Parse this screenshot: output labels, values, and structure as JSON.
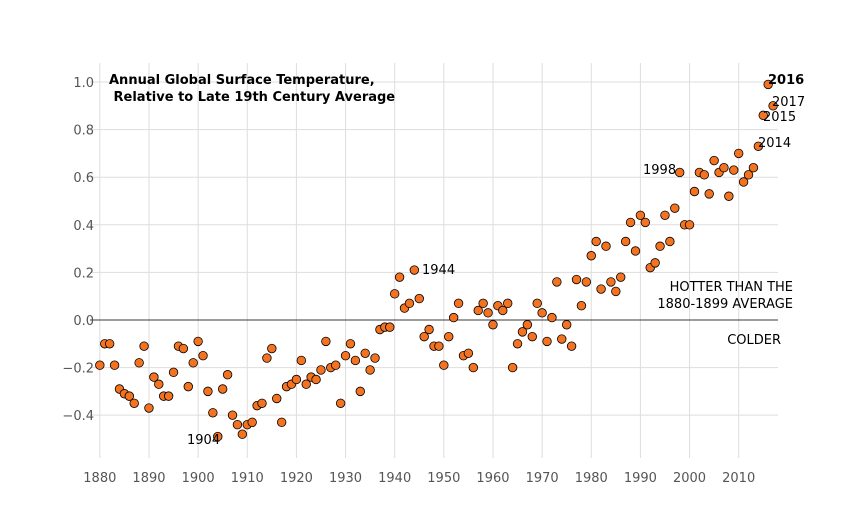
{
  "chart_data": {
    "type": "scatter",
    "title_lines": [
      "Annual Global Surface Temperature,",
      " Relative to Late 19th Century Average"
    ],
    "xlabel": "",
    "ylabel": "",
    "xlim": [
      1878,
      2018
    ],
    "ylim": [
      -0.58,
      1.08
    ],
    "grid": true,
    "x_ticks": [
      1880,
      1890,
      1900,
      1910,
      1920,
      1930,
      1940,
      1950,
      1960,
      1970,
      1980,
      1990,
      2000,
      2010
    ],
    "y_ticks": [
      -0.4,
      -0.2,
      0.0,
      0.2,
      0.4,
      0.6,
      0.8,
      1.0
    ],
    "y_tick_labels": [
      "−0.4",
      "−0.2",
      "0.0",
      "0.2",
      "0.4",
      "0.6",
      "0.8",
      "1.0"
    ],
    "point_color": "#f47320",
    "annotations": {
      "hotter": [
        "HOTTER THAN THE",
        "1880-1899 AVERAGE"
      ],
      "colder": "COLDER",
      "y1904": "1904",
      "y1944": "1944",
      "y1998": "1998",
      "y2014": "2014",
      "y2015": "2015",
      "y2016": "2016",
      "y2017": "2017"
    },
    "points": {
      "x": [
        1880,
        1881,
        1882,
        1883,
        1884,
        1885,
        1886,
        1887,
        1888,
        1889,
        1890,
        1891,
        1892,
        1893,
        1894,
        1895,
        1896,
        1897,
        1898,
        1899,
        1900,
        1901,
        1902,
        1903,
        1904,
        1905,
        1906,
        1907,
        1908,
        1909,
        1910,
        1911,
        1912,
        1913,
        1914,
        1915,
        1916,
        1917,
        1918,
        1919,
        1920,
        1921,
        1922,
        1923,
        1924,
        1925,
        1926,
        1927,
        1928,
        1929,
        1930,
        1931,
        1932,
        1933,
        1934,
        1935,
        1936,
        1937,
        1938,
        1939,
        1940,
        1941,
        1942,
        1943,
        1944,
        1945,
        1946,
        1947,
        1948,
        1949,
        1950,
        1951,
        1952,
        1953,
        1954,
        1955,
        1956,
        1957,
        1958,
        1959,
        1960,
        1961,
        1962,
        1963,
        1964,
        1965,
        1966,
        1967,
        1968,
        1969,
        1970,
        1971,
        1972,
        1973,
        1974,
        1975,
        1976,
        1977,
        1978,
        1979,
        1980,
        1981,
        1982,
        1983,
        1984,
        1985,
        1986,
        1987,
        1988,
        1989,
        1990,
        1991,
        1992,
        1993,
        1994,
        1995,
        1996,
        1997,
        1998,
        1999,
        2000,
        2001,
        2002,
        2003,
        2004,
        2005,
        2006,
        2007,
        2008,
        2009,
        2010,
        2011,
        2012,
        2013,
        2014,
        2015,
        2016,
        2017
      ],
      "y": [
        -0.19,
        -0.1,
        -0.1,
        -0.19,
        -0.29,
        -0.31,
        -0.32,
        -0.35,
        -0.18,
        -0.11,
        -0.37,
        -0.24,
        -0.27,
        -0.32,
        -0.32,
        -0.22,
        -0.11,
        -0.12,
        -0.28,
        -0.18,
        -0.09,
        -0.15,
        -0.3,
        -0.39,
        -0.49,
        -0.29,
        -0.23,
        -0.4,
        -0.44,
        -0.48,
        -0.44,
        -0.43,
        -0.36,
        -0.35,
        -0.16,
        -0.12,
        -0.33,
        -0.43,
        -0.28,
        -0.27,
        -0.25,
        -0.17,
        -0.27,
        -0.24,
        -0.25,
        -0.21,
        -0.09,
        -0.2,
        -0.19,
        -0.35,
        -0.15,
        -0.1,
        -0.17,
        -0.3,
        -0.14,
        -0.21,
        -0.16,
        -0.04,
        -0.03,
        -0.03,
        0.11,
        0.18,
        0.05,
        0.07,
        0.21,
        0.09,
        -0.07,
        -0.04,
        -0.11,
        -0.11,
        -0.19,
        -0.07,
        0.01,
        0.07,
        -0.15,
        -0.14,
        -0.2,
        0.04,
        0.07,
        0.03,
        -0.02,
        0.06,
        0.04,
        0.07,
        -0.2,
        -0.1,
        -0.05,
        -0.02,
        -0.07,
        0.07,
        0.03,
        -0.09,
        0.01,
        0.16,
        -0.08,
        -0.02,
        -0.11,
        0.17,
        0.06,
        0.16,
        0.27,
        0.33,
        0.13,
        0.31,
        0.16,
        0.12,
        0.18,
        0.33,
        0.41,
        0.29,
        0.44,
        0.41,
        0.22,
        0.24,
        0.31,
        0.44,
        0.33,
        0.47,
        0.62,
        0.4,
        0.4,
        0.54,
        0.62,
        0.61,
        0.53,
        0.67,
        0.62,
        0.64,
        0.52,
        0.63,
        0.7,
        0.58,
        0.61,
        0.64,
        0.73,
        0.86,
        0.99,
        0.9
      ]
    }
  }
}
